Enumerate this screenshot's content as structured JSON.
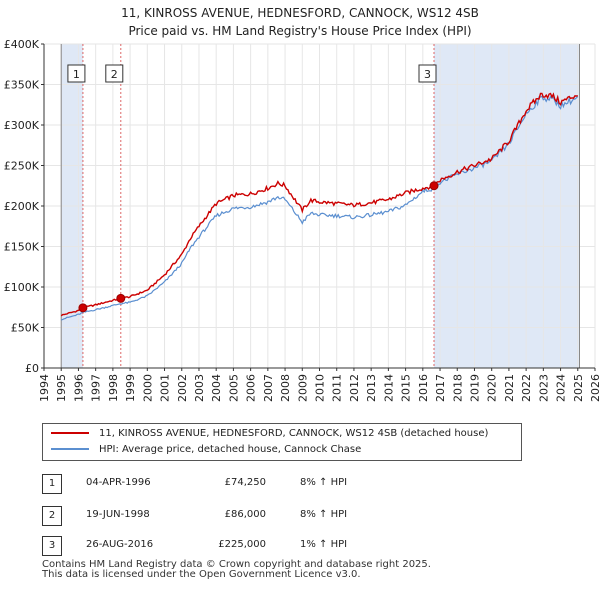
{
  "chart_data": {
    "type": "line",
    "title": "11, KINROSS AVENUE, HEDNESFORD, CANNOCK, WS12 4SB",
    "subtitle": "Price paid vs. HM Land Registry's House Price Index (HPI)",
    "xlim": [
      1994,
      2026
    ],
    "ylim": [
      0,
      400000
    ],
    "x_ticks": [
      "1994",
      "1995",
      "1996",
      "1997",
      "1998",
      "1999",
      "2000",
      "2001",
      "2002",
      "2003",
      "2004",
      "2005",
      "2006",
      "2007",
      "2008",
      "2009",
      "2010",
      "2011",
      "2012",
      "2013",
      "2014",
      "2015",
      "2016",
      "2017",
      "2018",
      "2019",
      "2020",
      "2021",
      "2022",
      "2023",
      "2024",
      "2025",
      "2026"
    ],
    "y_ticks": [
      {
        "value": 0,
        "label": "£0"
      },
      {
        "value": 50000,
        "label": "£50K"
      },
      {
        "value": 100000,
        "label": "£100K"
      },
      {
        "value": 150000,
        "label": "£150K"
      },
      {
        "value": 200000,
        "label": "£200K"
      },
      {
        "value": 250000,
        "label": "£250K"
      },
      {
        "value": 300000,
        "label": "£300K"
      },
      {
        "value": 350000,
        "label": "£350K"
      },
      {
        "value": 400000,
        "label": "£400K"
      }
    ],
    "data_range": [
      1995.0,
      2025.1
    ],
    "shaded_periods": [
      [
        1995.0,
        1996.26
      ],
      [
        2016.65,
        2025.1
      ]
    ],
    "series": [
      {
        "name": "11, KINROSS AVENUE, HEDNESFORD, CANNOCK, WS12 4SB (detached house)",
        "color": "#cc0000",
        "x": [
          1995.0,
          1996.0,
          1996.26,
          1997.0,
          1998.46,
          1999.0,
          2000.0,
          2001.0,
          2002.0,
          2002.5,
          2003.0,
          2004.0,
          2005.0,
          2006.0,
          2007.0,
          2007.6,
          2008.0,
          2008.5,
          2009.0,
          2009.5,
          2010.0,
          2011.0,
          2012.0,
          2013.0,
          2014.0,
          2015.0,
          2016.0,
          2016.65,
          2017.0,
          2018.0,
          2019.0,
          2020.0,
          2021.0,
          2022.0,
          2022.9,
          2023.5,
          2024.0,
          2025.0
        ],
        "values": [
          65000,
          71000,
          74250,
          78000,
          86000,
          88000,
          96000,
          115000,
          140000,
          160000,
          175000,
          203000,
          213000,
          215000,
          222000,
          228000,
          225000,
          210000,
          195000,
          207000,
          205000,
          203000,
          201000,
          204000,
          208000,
          216000,
          222000,
          225000,
          232000,
          242000,
          250000,
          258000,
          280000,
          318000,
          338000,
          336000,
          328000,
          338000
        ]
      },
      {
        "name": "HPI: Average price, detached house, Cannock Chase",
        "color": "#5b8fd0",
        "x": [
          1995.0,
          1996.0,
          1996.26,
          1997.0,
          1998.46,
          1999.0,
          2000.0,
          2001.0,
          2002.0,
          2002.5,
          2003.0,
          2004.0,
          2005.0,
          2006.0,
          2007.0,
          2007.6,
          2008.0,
          2008.5,
          2009.0,
          2009.5,
          2010.0,
          2011.0,
          2012.0,
          2013.0,
          2014.0,
          2015.0,
          2016.0,
          2016.65,
          2017.0,
          2018.0,
          2019.0,
          2020.0,
          2021.0,
          2022.0,
          2022.9,
          2023.5,
          2024.0,
          2025.0
        ],
        "values": [
          60000,
          66000,
          68500,
          72000,
          79500,
          81000,
          89000,
          106000,
          129000,
          148000,
          162000,
          188000,
          197000,
          199000,
          205000,
          211000,
          208000,
          194000,
          180000,
          191000,
          189000,
          188000,
          186000,
          189000,
          193000,
          201000,
          218000,
          222000,
          229000,
          239000,
          247000,
          255000,
          277000,
          314000,
          334000,
          332000,
          324000,
          334000
        ]
      }
    ],
    "markers": [
      {
        "label": "1",
        "x": 1996.26,
        "y": 74250
      },
      {
        "label": "2",
        "x": 1998.46,
        "y": 86000
      },
      {
        "label": "3",
        "x": 2016.65,
        "y": 225000
      }
    ]
  },
  "legend": {
    "price_label": "11, KINROSS AVENUE, HEDNESFORD, CANNOCK, WS12 4SB (detached house)",
    "hpi_label": "HPI: Average price, detached house, Cannock Chase"
  },
  "transactions": [
    {
      "num": "1",
      "date": "04-APR-1996",
      "price": "£74,250",
      "hpi": "8% ↑ HPI"
    },
    {
      "num": "2",
      "date": "19-JUN-1998",
      "price": "£86,000",
      "hpi": "8% ↑ HPI"
    },
    {
      "num": "3",
      "date": "26-AUG-2016",
      "price": "£225,000",
      "hpi": "1% ↑ HPI"
    }
  ],
  "footer": {
    "line1": "Contains HM Land Registry data © Crown copyright and database right 2025.",
    "line2": "This data is licensed under the Open Government Licence v3.0."
  },
  "colors": {
    "price_line": "#cc0000",
    "hpi_line": "#5b8fd0",
    "shade": "#dfe8f6",
    "grid": "#e6e6e6"
  }
}
